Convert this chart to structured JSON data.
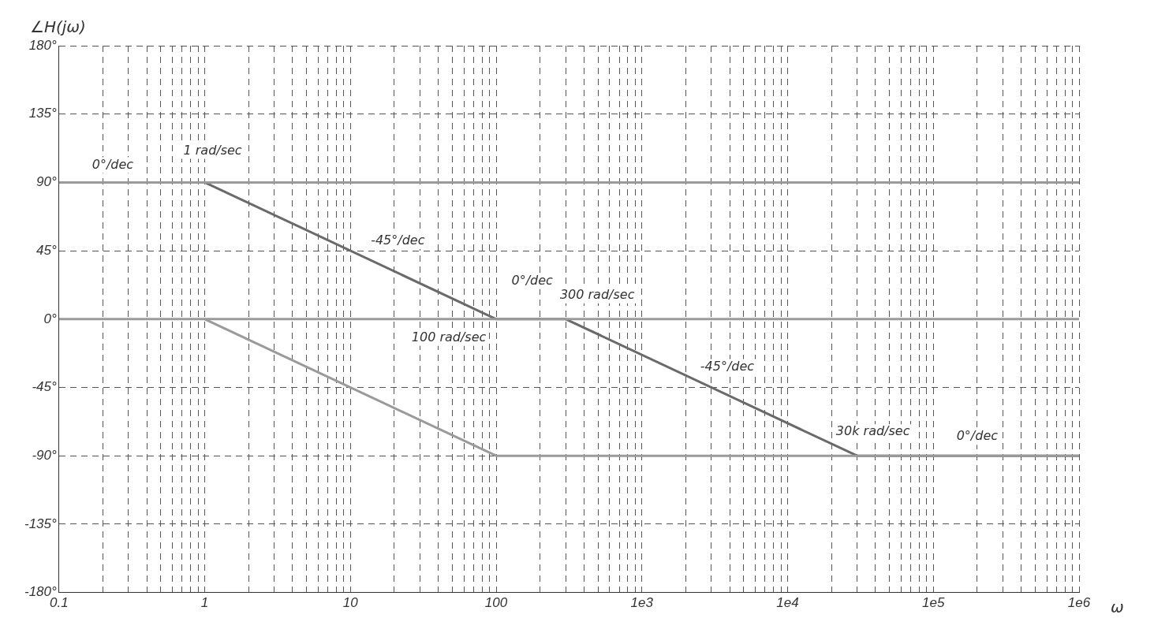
{
  "chart_data": {
    "type": "line",
    "xlabel": "ω",
    "ylabel": "∠H(jω)",
    "log": "x",
    "grid": true,
    "legend": false,
    "line_style": "solid",
    "marker": "none",
    "xlim": [
      0.1,
      1000000
    ],
    "ylim": [
      -180,
      180
    ],
    "xticks": [
      {
        "value": 0.1,
        "label": "0.1"
      },
      {
        "value": 0.2,
        "label": null
      },
      {
        "value": 0.3,
        "label": null
      },
      {
        "value": 0.4,
        "label": null
      },
      {
        "value": 0.5,
        "label": null
      },
      {
        "value": 0.6,
        "label": null
      },
      {
        "value": 0.7,
        "label": null
      },
      {
        "value": 0.8,
        "label": null
      },
      {
        "value": 0.9,
        "label": null
      },
      {
        "value": 1,
        "label": "1"
      },
      {
        "value": 2,
        "label": null
      },
      {
        "value": 3,
        "label": null
      },
      {
        "value": 4,
        "label": null
      },
      {
        "value": 5,
        "label": null
      },
      {
        "value": 6,
        "label": null
      },
      {
        "value": 7,
        "label": null
      },
      {
        "value": 8,
        "label": null
      },
      {
        "value": 9,
        "label": null
      },
      {
        "value": 10,
        "label": "10"
      },
      {
        "value": 20,
        "label": null
      },
      {
        "value": 30,
        "label": null
      },
      {
        "value": 40,
        "label": null
      },
      {
        "value": 50,
        "label": null
      },
      {
        "value": 60,
        "label": null
      },
      {
        "value": 70,
        "label": null
      },
      {
        "value": 80,
        "label": null
      },
      {
        "value": 90,
        "label": null
      },
      {
        "value": 100,
        "label": "100"
      },
      {
        "value": 200,
        "label": null
      },
      {
        "value": 300,
        "label": null
      },
      {
        "value": 400,
        "label": null
      },
      {
        "value": 500,
        "label": null
      },
      {
        "value": 600,
        "label": null
      },
      {
        "value": 700,
        "label": null
      },
      {
        "value": 800,
        "label": null
      },
      {
        "value": 900,
        "label": null
      },
      {
        "value": 1000,
        "label": "1e3"
      },
      {
        "value": 2000,
        "label": null
      },
      {
        "value": 3000,
        "label": null
      },
      {
        "value": 4000,
        "label": null
      },
      {
        "value": 5000,
        "label": null
      },
      {
        "value": 6000,
        "label": null
      },
      {
        "value": 7000,
        "label": null
      },
      {
        "value": 8000,
        "label": null
      },
      {
        "value": 9000,
        "label": null
      },
      {
        "value": 10000,
        "label": "1e4"
      },
      {
        "value": 20000,
        "label": null
      },
      {
        "value": 30000,
        "label": null
      },
      {
        "value": 40000,
        "label": null
      },
      {
        "value": 50000,
        "label": null
      },
      {
        "value": 60000,
        "label": null
      },
      {
        "value": 70000,
        "label": null
      },
      {
        "value": 80000,
        "label": null
      },
      {
        "value": 90000,
        "label": null
      },
      {
        "value": 100000,
        "label": "1e5"
      },
      {
        "value": 200000,
        "label": null
      },
      {
        "value": 300000,
        "label": null
      },
      {
        "value": 400000,
        "label": null
      },
      {
        "value": 500000,
        "label": null
      },
      {
        "value": 600000,
        "label": null
      },
      {
        "value": 700000,
        "label": null
      },
      {
        "value": 800000,
        "label": null
      },
      {
        "value": 900000,
        "label": null
      },
      {
        "value": 1000000,
        "label": "1e6"
      }
    ],
    "yticks": [
      {
        "value": -180,
        "label": "-180°"
      },
      {
        "value": -135,
        "label": "-135°"
      },
      {
        "value": -90,
        "label": "-90°"
      },
      {
        "value": -45,
        "label": "-45°"
      },
      {
        "value": 0,
        "label": "0°"
      },
      {
        "value": 45,
        "label": "45°"
      },
      {
        "value": 90,
        "label": "90°"
      },
      {
        "value": 135,
        "label": "135°"
      },
      {
        "value": 180,
        "label": "180°"
      }
    ],
    "series": [
      {
        "color": "#9a9a9a",
        "x": [
          0.1,
          1000000
        ],
        "values": [
          90,
          90
        ]
      },
      {
        "color": "#9a9a9a",
        "x": [
          0.1,
          1000000
        ],
        "values": [
          0,
          0
        ]
      },
      {
        "color": "#9a9a9a",
        "x": [
          1,
          100,
          1000000
        ],
        "values": [
          0,
          -90,
          -90
        ]
      },
      {
        "color": "#6a6a6a",
        "x": [
          0.1,
          1,
          100,
          300,
          30000,
          1000000
        ],
        "values": [
          90,
          90,
          0,
          0,
          -90,
          -90
        ]
      }
    ],
    "annotations": [
      {
        "text": "0°/dec",
        "x": 0.3,
        "y": 90
      },
      {
        "text": "1 rad/sec",
        "x": 1,
        "y": 90
      },
      {
        "text": "-45°/dec",
        "x": 10,
        "y": 45
      },
      {
        "text": "0°/dec",
        "x": 200,
        "y": 0
      },
      {
        "text": "300 rad/sec",
        "x": 300,
        "y": 0
      },
      {
        "text": "100 rad/sec",
        "x": 100,
        "y": 0
      },
      {
        "text": "-45°/dec",
        "x": 3000,
        "y": -45
      },
      {
        "text": "30k rad/sec",
        "x": 30000,
        "y": -90
      },
      {
        "text": "0°/dec",
        "x": 200000,
        "y": -90
      }
    ]
  }
}
